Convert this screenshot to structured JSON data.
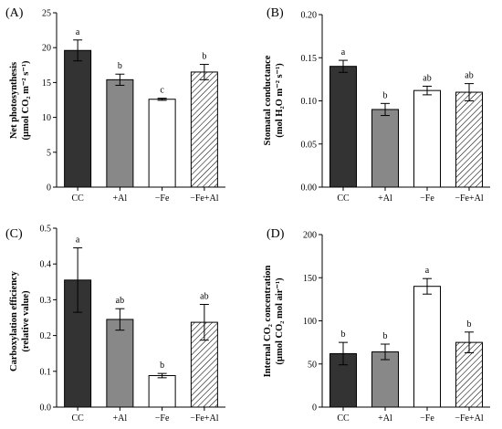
{
  "colors": {
    "CC": "#333333",
    "+Al": "#888888",
    "-Fe": "#ffffff",
    "-Fe+Al": "hatched",
    "stroke": "#000000"
  },
  "chart_data": [
    {
      "type": "bar",
      "panel": "(A)",
      "ylabel_line1": "Net photosynthesis",
      "ylabel_line2": "(µmol CO₂ m⁻² s⁻¹)",
      "categories": [
        "CC",
        "+Al",
        "−Fe",
        "−Fe+Al"
      ],
      "values": [
        19.6,
        15.4,
        12.6,
        16.5
      ],
      "errors": [
        1.5,
        0.8,
        0.15,
        1.1
      ],
      "significance": [
        "a",
        "b",
        "c",
        "b"
      ],
      "ylim": [
        0,
        25
      ],
      "yticks": [
        "0",
        "5",
        "10",
        "15",
        "20",
        "25"
      ]
    },
    {
      "type": "bar",
      "panel": "(B)",
      "ylabel_line1": "Stomatal conductance",
      "ylabel_line2": "(mol H₂O m⁻² s⁻¹)",
      "categories": [
        "CC",
        "+Al",
        "−Fe",
        "−Fe+Al"
      ],
      "values": [
        0.14,
        0.09,
        0.112,
        0.11
      ],
      "errors": [
        0.007,
        0.007,
        0.005,
        0.01
      ],
      "significance": [
        "a",
        "b",
        "ab",
        "ab"
      ],
      "ylim": [
        0,
        0.2
      ],
      "yticks": [
        "0.00",
        "0.05",
        "0.10",
        "0.15",
        "0.20"
      ]
    },
    {
      "type": "bar",
      "panel": "(C)",
      "ylabel_line1": "Carboxylation efficiency",
      "ylabel_line2": "(relative value)",
      "categories": [
        "CC",
        "+Al",
        "−Fe",
        "−Fe+Al"
      ],
      "values": [
        0.355,
        0.245,
        0.088,
        0.237
      ],
      "errors": [
        0.09,
        0.03,
        0.006,
        0.05
      ],
      "significance": [
        "a",
        "ab",
        "b",
        "ab"
      ],
      "ylim": [
        0,
        0.5
      ],
      "yticks": [
        "0.0",
        "0.1",
        "0.2",
        "0.3",
        "0.4",
        "0.5"
      ]
    },
    {
      "type": "bar",
      "panel": "(D)",
      "ylabel_line1": "Internal CO₂ concentration",
      "ylabel_line2": "(µmol CO₂ mol air⁻¹)",
      "categories": [
        "CC",
        "+Al",
        "−Fe",
        "−Fe+Al"
      ],
      "values": [
        62,
        64,
        140,
        75
      ],
      "errors": [
        13,
        9,
        9,
        12
      ],
      "significance": [
        "b",
        "b",
        "a",
        "b"
      ],
      "ylim": [
        0,
        200
      ],
      "yticks": [
        "0",
        "50",
        "100",
        "150",
        "200"
      ]
    }
  ]
}
